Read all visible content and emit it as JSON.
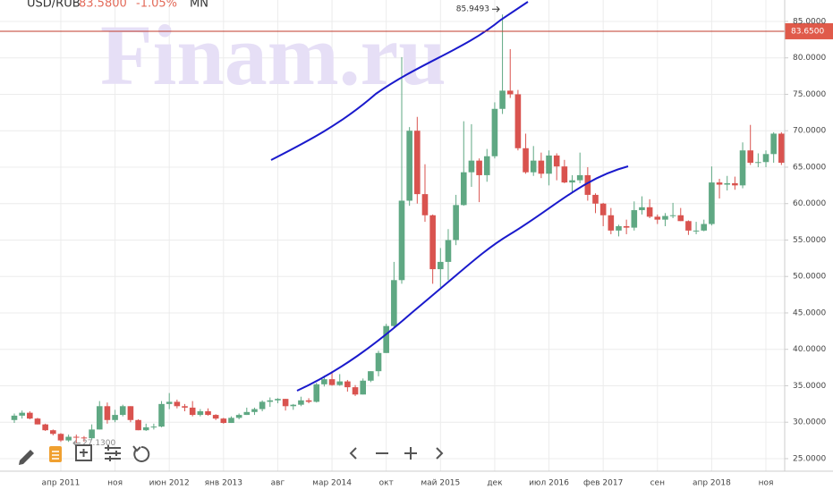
{
  "header": {
    "symbol": "USD/RUB",
    "price": {
      "value": 83.58,
      "label": "83.5800"
    },
    "change": {
      "value": -1.05,
      "label": "-1.05%"
    },
    "interval": "MN"
  },
  "chart_data": {
    "type": "candlestick",
    "watermark": "Finam.ru",
    "up_color": "#5fa883",
    "down_color": "#d9534f",
    "grid": true,
    "categories": [
      null,
      null,
      null,
      null,
      null,
      null,
      "апр 2011",
      null,
      null,
      null,
      null,
      null,
      null,
      "ноя",
      null,
      null,
      null,
      null,
      null,
      null,
      "июн 2012",
      null,
      null,
      null,
      null,
      null,
      null,
      "янв 2013",
      null,
      null,
      null,
      null,
      null,
      null,
      "авг",
      null,
      null,
      null,
      null,
      null,
      null,
      "мар 2014",
      null,
      null,
      null,
      null,
      null,
      null,
      "окт",
      null,
      null,
      null,
      null,
      null,
      null,
      "май 2015",
      null,
      null,
      null,
      null,
      null,
      null,
      "дек",
      null,
      null,
      null,
      null,
      null,
      null,
      "июл 2016",
      null,
      null,
      null,
      null,
      null,
      null,
      "фев 2017",
      null,
      null,
      null,
      null,
      null,
      null,
      "сен",
      null,
      null,
      null,
      null,
      null,
      null,
      "апр 2018",
      null,
      null,
      null,
      null,
      null,
      null,
      "ноя",
      null,
      null
    ],
    "open": [
      30.3,
      30.9,
      31.3,
      30.5,
      29.7,
      28.9,
      28.4,
      27.5,
      28.0,
      27.9,
      27.8,
      29.0,
      32.2,
      30.3,
      31.0,
      32.2,
      30.3,
      28.9,
      29.3,
      29.4,
      32.5,
      32.8,
      32.2,
      32.0,
      31.0,
      31.5,
      31.0,
      30.5,
      29.9,
      30.6,
      31.0,
      31.4,
      31.8,
      32.8,
      33.0,
      33.2,
      32.2,
      32.4,
      33.0,
      32.8,
      35.2,
      35.9,
      35.1,
      35.6,
      34.8,
      33.8,
      35.7,
      37.0,
      39.5,
      43.2,
      49.5,
      60.4,
      70.0,
      61.3,
      58.4,
      51.0,
      52.0,
      55.0,
      59.8,
      64.3,
      65.9,
      63.9,
      66.5,
      73.0,
      75.5,
      75.0,
      67.6,
      64.3,
      65.9,
      64.1,
      66.6,
      65.1,
      62.9,
      63.2,
      63.9,
      61.2,
      60.0,
      58.4,
      56.3,
      56.9,
      56.7,
      59.1,
      59.5,
      58.2,
      57.8,
      58.3,
      58.4,
      57.6,
      56.3,
      56.3,
      57.2,
      62.9,
      62.6,
      62.8,
      62.5,
      67.3,
      65.6,
      65.7,
      66.8,
      69.6
    ],
    "high": [
      31.2,
      31.6,
      31.5,
      30.6,
      29.8,
      29.0,
      28.5,
      28.3,
      28.3,
      28.1,
      29.7,
      32.9,
      32.7,
      31.7,
      32.4,
      32.2,
      30.4,
      29.8,
      29.8,
      32.9,
      34.0,
      33.1,
      32.5,
      32.9,
      31.8,
      31.9,
      31.1,
      30.6,
      30.8,
      31.2,
      32.0,
      32.0,
      33.0,
      33.4,
      33.3,
      33.2,
      32.5,
      33.5,
      33.3,
      35.4,
      36.4,
      37.0,
      36.6,
      35.8,
      35.1,
      36.0,
      37.0,
      39.8,
      43.5,
      52.0,
      80.1,
      70.5,
      71.9,
      65.4,
      58.5,
      53.9,
      56.5,
      61.2,
      71.3,
      70.9,
      66.2,
      67.5,
      73.9,
      85.9493,
      81.2,
      75.6,
      69.6,
      67.9,
      67.0,
      67.3,
      66.9,
      66.0,
      63.9,
      67.0,
      65.0,
      61.4,
      60.1,
      59.4,
      57.1,
      57.8,
      60.3,
      61.0,
      60.6,
      58.5,
      58.7,
      60.1,
      59.4,
      57.7,
      57.5,
      57.8,
      65.1,
      63.4,
      63.8,
      63.7,
      68.4,
      70.8,
      66.9,
      67.3,
      69.8,
      69.8
    ],
    "low": [
      29.9,
      30.5,
      30.4,
      29.7,
      28.8,
      28.2,
      27.3,
      27.3,
      27.13,
      27.3,
      27.6,
      29.0,
      29.8,
      30.0,
      30.8,
      30.0,
      28.9,
      28.8,
      29.0,
      29.3,
      31.8,
      31.9,
      31.5,
      30.8,
      30.8,
      30.9,
      30.3,
      29.8,
      29.9,
      30.4,
      31.0,
      31.0,
      31.5,
      32.1,
      32.6,
      31.6,
      31.7,
      32.2,
      32.6,
      32.7,
      34.9,
      35.0,
      35.0,
      34.2,
      33.6,
      33.8,
      35.5,
      36.3,
      39.5,
      43.0,
      49.0,
      59.7,
      60.0,
      57.5,
      49.0,
      48.5,
      49.5,
      54.3,
      59.7,
      62.3,
      60.2,
      63.0,
      66.2,
      72.3,
      74.5,
      67.3,
      64.1,
      63.8,
      63.5,
      62.5,
      63.2,
      62.8,
      61.6,
      62.8,
      60.4,
      58.7,
      56.9,
      55.8,
      55.5,
      55.8,
      56.3,
      58.5,
      58.0,
      57.2,
      56.9,
      58.0,
      57.6,
      55.7,
      55.8,
      56.2,
      57.0,
      60.7,
      61.8,
      61.9,
      62.1,
      65.3,
      65.0,
      65.0,
      65.6,
      65.3
    ],
    "close": [
      30.9,
      31.3,
      30.5,
      29.7,
      28.9,
      28.4,
      27.5,
      28.0,
      27.9,
      27.8,
      29.0,
      32.2,
      30.3,
      31.0,
      32.2,
      30.3,
      28.9,
      29.3,
      29.4,
      32.5,
      32.8,
      32.2,
      32.0,
      31.0,
      31.5,
      31.0,
      30.5,
      29.9,
      30.6,
      31.0,
      31.4,
      31.8,
      32.8,
      33.0,
      33.2,
      32.2,
      32.4,
      33.0,
      32.8,
      35.2,
      35.9,
      35.1,
      35.6,
      34.8,
      33.8,
      35.7,
      37.0,
      39.5,
      43.2,
      49.5,
      60.4,
      70.0,
      61.3,
      58.4,
      51.0,
      52.0,
      55.0,
      59.8,
      64.3,
      65.9,
      63.9,
      66.5,
      73.0,
      75.5,
      75.0,
      67.6,
      64.3,
      65.9,
      64.1,
      66.6,
      65.1,
      62.9,
      63.2,
      63.9,
      61.2,
      60.0,
      58.4,
      56.3,
      56.9,
      56.7,
      59.1,
      59.5,
      58.2,
      57.8,
      58.3,
      58.4,
      57.6,
      56.3,
      56.3,
      57.2,
      62.9,
      62.6,
      62.8,
      62.5,
      67.3,
      65.6,
      65.7,
      66.8,
      69.6,
      65.6
    ],
    "ylim": [
      23.28,
      87.94
    ],
    "yticks": [
      {
        "value": 25,
        "label": "25.0000"
      },
      {
        "value": 30,
        "label": "30.0000"
      },
      {
        "value": 35,
        "label": "35.0000"
      },
      {
        "value": 40,
        "label": "40.0000"
      },
      {
        "value": 45,
        "label": "45.0000"
      },
      {
        "value": 50,
        "label": "50.0000"
      },
      {
        "value": 55,
        "label": "55.0000"
      },
      {
        "value": 60,
        "label": "60.0000"
      },
      {
        "value": 65,
        "label": "65.0000"
      },
      {
        "value": 70,
        "label": "70.0000"
      },
      {
        "value": 75,
        "label": "75.0000"
      },
      {
        "value": 80,
        "label": "80.0000"
      },
      {
        "value": 85,
        "label": "85.0000"
      }
    ],
    "current_price": {
      "value": 83.65,
      "label": "83.6500"
    },
    "high_annotation": 85.9493,
    "low_annotation": {
      "value": 27.13,
      "label": "27.1300"
    }
  }
}
